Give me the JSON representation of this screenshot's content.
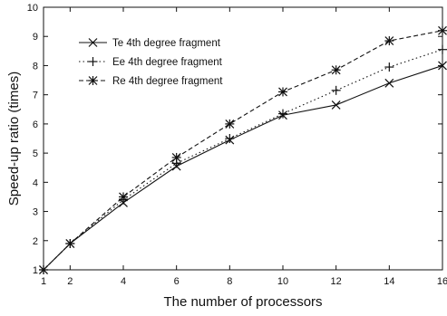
{
  "chart_data": {
    "type": "line",
    "title": "",
    "xlabel": "The number of processors",
    "ylabel": "Speed-up ratio (times)",
    "xlim": [
      1,
      16
    ],
    "ylim": [
      1,
      10
    ],
    "x_ticks": [
      1,
      2,
      4,
      6,
      8,
      10,
      12,
      14,
      16
    ],
    "y_ticks": [
      1,
      2,
      3,
      4,
      5,
      6,
      7,
      8,
      9,
      10
    ],
    "grid": false,
    "legend_position": "top-left",
    "x": [
      1,
      2,
      4,
      6,
      8,
      10,
      12,
      14,
      16
    ],
    "series": [
      {
        "name": "Te 4th degree fragment",
        "marker": "x-mark",
        "line_style": "solid",
        "values": [
          1.0,
          1.9,
          3.3,
          4.55,
          5.45,
          6.3,
          6.65,
          7.4,
          8.0
        ]
      },
      {
        "name": "Ee 4th degree fragment",
        "marker": "plus",
        "line_style": "dotted",
        "values": [
          1.0,
          1.9,
          3.4,
          4.65,
          5.5,
          6.35,
          7.15,
          7.95,
          8.55
        ]
      },
      {
        "name": "Re 4th degree fragment",
        "marker": "asterisk",
        "line_style": "dashed",
        "values": [
          1.0,
          1.9,
          3.5,
          4.85,
          6.0,
          7.1,
          7.85,
          8.85,
          9.2
        ]
      }
    ],
    "colors": {
      "line": "#111111",
      "axis": "#111111"
    }
  }
}
